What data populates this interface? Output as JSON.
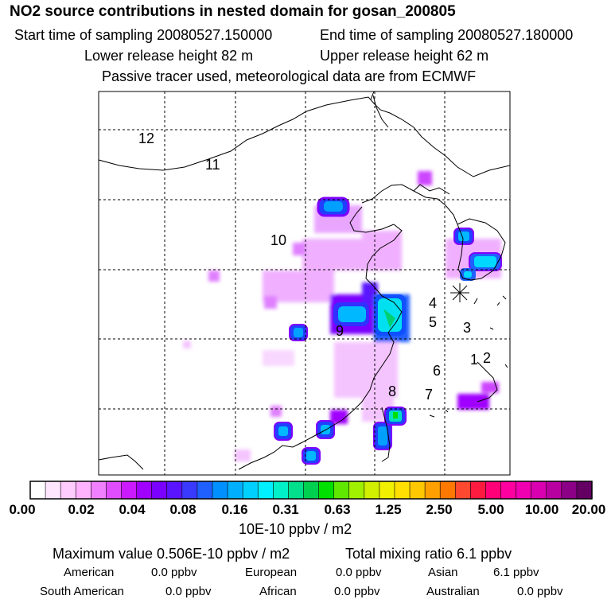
{
  "header": {
    "title": "NO2 source contributions in nested domain for gosan_200805",
    "start_time": "Start time of sampling 20080527.150000",
    "end_time": "End time of sampling 20080527.180000",
    "lower_release": "Lower release height   82 m",
    "upper_release": "Upper release height   62 m",
    "note": "Passive tracer used, meteorological data are from ECMWF"
  },
  "map": {
    "region_labels": [
      "12",
      "11",
      "10",
      "9",
      "8",
      "7",
      "6",
      "5",
      "4",
      "3",
      "2",
      "1"
    ],
    "station_marker": "receptor-star"
  },
  "colorbar": {
    "labels": [
      "0.00",
      "0.02",
      "0.04",
      "0.08",
      "0.16",
      "0.31",
      "0.63",
      "1.25",
      "2.50",
      "5.00",
      "10.00",
      "20.00"
    ],
    "unit": "10E-10 ppbv / m2",
    "colors": [
      "#ffffff",
      "#ffe6ff",
      "#ffccff",
      "#ffb3ff",
      "#f080ff",
      "#e04dff",
      "#cc1aff",
      "#a000ff",
      "#7a00ff",
      "#5a14ff",
      "#3a3aff",
      "#2060ff",
      "#0090ff",
      "#00b0ff",
      "#00d0ff",
      "#00f0ff",
      "#00f0c8",
      "#00e08c",
      "#00d050",
      "#00e000",
      "#60e800",
      "#a0f000",
      "#d0f000",
      "#f0f000",
      "#ffe000",
      "#ffc800",
      "#ffa000",
      "#ff7800",
      "#ff4830",
      "#ff1a40",
      "#ff0078",
      "#ff00a0",
      "#f000b0",
      "#d800b0",
      "#b800a0",
      "#8c0088",
      "#640064"
    ]
  },
  "stats": {
    "max_value": "Maximum value  0.506E-10 ppbv / m2",
    "total_mixing": "Total mixing ratio       6.1 ppbv",
    "american_label": "American",
    "american_value": "0.0 ppbv",
    "european_label": "European",
    "european_value": "0.0 ppbv",
    "asian_label": "Asian",
    "asian_value": "6.1 ppbv",
    "south_american_label": "South American",
    "south_american_value": "0.0 ppbv",
    "african_label": "African",
    "african_value": "0.0 ppbv",
    "australian_label": "Australian",
    "australian_value": "0.0 ppbv"
  }
}
